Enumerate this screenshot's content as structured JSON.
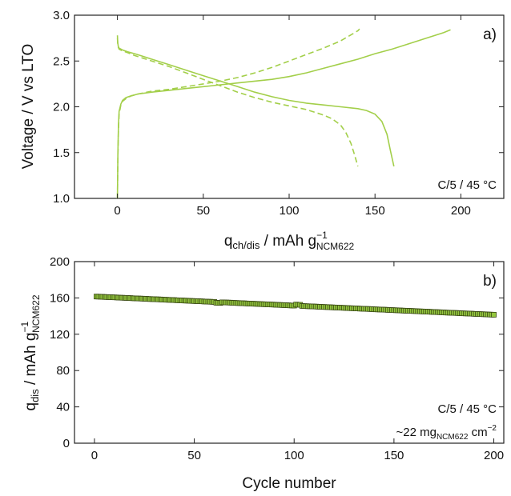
{
  "colors": {
    "line": "#a3cf4a",
    "marker_fill": "#94c73e",
    "marker_edge": "#3a4a14",
    "axis": "#222222"
  },
  "chart_data": [
    {
      "type": "line",
      "panel_tag": "a)",
      "xlabel": {
        "main": "q",
        "sub": "ch/dis",
        "unit": " / mAh g",
        "sup": "−1",
        "unit_sub": "NCM622"
      },
      "ylabel": "Voltage / V vs LTO",
      "xlim": [
        -25,
        225
      ],
      "ylim": [
        1.0,
        3.0
      ],
      "xticks": [
        0,
        50,
        100,
        150,
        200
      ],
      "yticks": [
        1.0,
        1.5,
        2.0,
        2.5,
        3.0
      ],
      "ytick_labels": [
        "1.0",
        "1.5",
        "2.0",
        "2.5",
        "3.0"
      ],
      "annotation": "C/5 / 45 °C",
      "grid": false,
      "series": [
        {
          "style": "solid",
          "x": [
            0,
            0.3,
            0.6,
            1,
            2,
            3,
            5,
            8,
            12,
            20,
            30,
            40,
            50,
            60,
            70,
            80,
            90,
            100,
            110,
            120,
            130,
            140,
            150,
            160,
            170,
            180,
            190,
            194
          ],
          "y": [
            1.0,
            1.5,
            1.8,
            1.95,
            2.03,
            2.07,
            2.1,
            2.12,
            2.14,
            2.16,
            2.18,
            2.2,
            2.22,
            2.24,
            2.26,
            2.28,
            2.3,
            2.33,
            2.37,
            2.42,
            2.47,
            2.52,
            2.58,
            2.63,
            2.69,
            2.75,
            2.81,
            2.84
          ]
        },
        {
          "style": "solid",
          "x": [
            0,
            0.2,
            0.5,
            1,
            3,
            6,
            10,
            15,
            20,
            30,
            40,
            50,
            60,
            70,
            80,
            90,
            100,
            110,
            120,
            130,
            140,
            145,
            150,
            154,
            157,
            159,
            161
          ],
          "y": [
            2.78,
            2.7,
            2.66,
            2.64,
            2.62,
            2.6,
            2.58,
            2.55,
            2.52,
            2.46,
            2.4,
            2.34,
            2.28,
            2.22,
            2.16,
            2.11,
            2.07,
            2.04,
            2.02,
            2.0,
            1.98,
            1.96,
            1.92,
            1.84,
            1.7,
            1.52,
            1.35
          ]
        },
        {
          "style": "dashed",
          "x": [
            0,
            0.3,
            0.6,
            1,
            2,
            3,
            5,
            8,
            12,
            20,
            30,
            40,
            50,
            60,
            70,
            80,
            90,
            100,
            110,
            120,
            130,
            140,
            141
          ],
          "y": [
            1.0,
            1.45,
            1.75,
            1.92,
            2.02,
            2.06,
            2.09,
            2.12,
            2.14,
            2.17,
            2.19,
            2.22,
            2.25,
            2.28,
            2.32,
            2.37,
            2.43,
            2.5,
            2.57,
            2.64,
            2.72,
            2.83,
            2.85
          ]
        },
        {
          "style": "dashed",
          "x": [
            0,
            0.2,
            0.5,
            1,
            3,
            6,
            10,
            15,
            20,
            30,
            40,
            50,
            60,
            70,
            80,
            90,
            100,
            110,
            120,
            125,
            130,
            133,
            136,
            138,
            140
          ],
          "y": [
            2.75,
            2.68,
            2.65,
            2.63,
            2.61,
            2.59,
            2.56,
            2.53,
            2.5,
            2.44,
            2.37,
            2.3,
            2.23,
            2.16,
            2.1,
            2.05,
            2.01,
            1.97,
            1.91,
            1.87,
            1.8,
            1.72,
            1.6,
            1.48,
            1.35
          ]
        }
      ]
    },
    {
      "type": "scatter",
      "panel_tag": "b)",
      "xlabel": "Cycle number",
      "ylabel": {
        "main": "q",
        "sub": "dis",
        "unit": " / mAh g",
        "sup": "−1",
        "unit_sub": "NCM622"
      },
      "xlim": [
        -10,
        205
      ],
      "ylim": [
        0,
        200
      ],
      "xticks": [
        0,
        50,
        100,
        150,
        200
      ],
      "yticks": [
        0,
        40,
        80,
        120,
        160,
        200
      ],
      "annotation": "C/5 / 45 °C",
      "annotation2": {
        "prefix": "~22 mg",
        "sub": "NCM622",
        "mid": " cm",
        "sup": "−2"
      },
      "grid": false,
      "trend": {
        "x_start": 1,
        "x_end": 200,
        "y_start": 161.5,
        "y_end": 141.5
      }
    }
  ]
}
